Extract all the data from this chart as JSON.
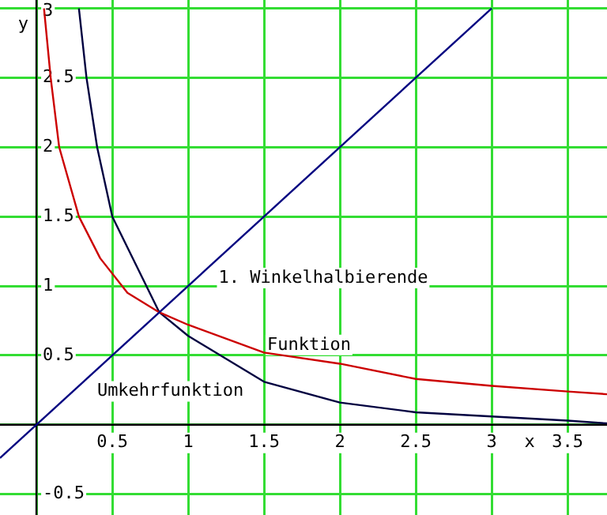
{
  "chart_data": {
    "type": "line",
    "xlabel": "x",
    "ylabel": "y",
    "xlim": [
      -0.24,
      3.76
    ],
    "ylim": [
      -0.65,
      3.06
    ],
    "xticks": [
      {
        "value": 0,
        "label": null
      },
      0.5,
      1,
      1.5,
      2,
      2.5,
      3,
      3.5
    ],
    "yticks": [
      -0.5,
      {
        "value": 0,
        "label": null
      },
      0.5,
      1,
      1.5,
      2,
      2.5,
      3
    ],
    "grid": true,
    "legend": false,
    "marker": "none",
    "line_style": "solid",
    "series": [
      {
        "name": "1. Winkelhalbierende",
        "color": "#000080",
        "x": [
          -0.24,
          3
        ],
        "values": [
          -0.24,
          3
        ]
      },
      {
        "name": "Funktion",
        "color": "#cc0000",
        "x": [
          0.05,
          0.094,
          0.15,
          0.28,
          0.42,
          0.6,
          0.81,
          1,
          1.5,
          2,
          2.5,
          3,
          3.5,
          3.76
        ],
        "values": [
          3,
          2.5,
          2,
          1.5,
          1.2,
          0.95,
          0.81,
          0.72,
          0.52,
          0.44,
          0.33,
          0.28,
          0.24,
          0.22
        ]
      },
      {
        "name": "Umkehrfunktion",
        "color": "#000040",
        "x": [
          0.28,
          0.33,
          0.4,
          0.5,
          0.81,
          1,
          1.5,
          2,
          2.5,
          3,
          3.5,
          3.76
        ],
        "values": [
          3,
          2.5,
          2,
          1.5,
          0.81,
          0.64,
          0.31,
          0.16,
          0.09,
          0.06,
          0.03,
          0.01
        ]
      }
    ]
  }
}
